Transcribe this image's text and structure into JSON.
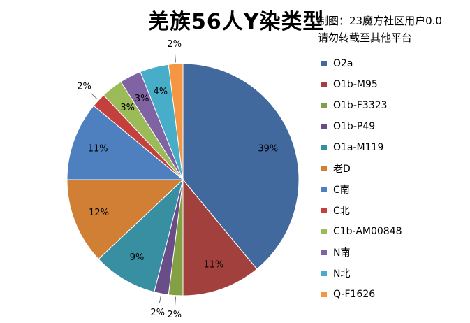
{
  "title": "羌族56人Y染类型",
  "credit": [
    "制图：23魔方社区用户0.0",
    "请勿转载至其他平台"
  ],
  "chart_data": {
    "type": "pie",
    "title": "羌族56人Y染类型",
    "legend_position": "right",
    "slices": [
      {
        "label": "O2a",
        "value": 39,
        "display": "39%",
        "color": "#41699E"
      },
      {
        "label": "O1b-M95",
        "value": 11,
        "display": "11%",
        "color": "#A2403D"
      },
      {
        "label": "O1b-F3323",
        "value": 2,
        "display": "2%",
        "color": "#84A045"
      },
      {
        "label": "O1b-P49",
        "value": 2,
        "display": "2%",
        "color": "#684D88"
      },
      {
        "label": "O1a-M119",
        "value": 9,
        "display": "9%",
        "color": "#388FA2"
      },
      {
        "label": "老D",
        "value": 12,
        "display": "12%",
        "color": "#D17F35"
      },
      {
        "label": "C南",
        "value": 11,
        "display": "11%",
        "color": "#4E80BF"
      },
      {
        "label": "C北",
        "value": 2,
        "display": "2%",
        "color": "#C4403C"
      },
      {
        "label": "C1b-AM00848",
        "value": 3,
        "display": "3%",
        "color": "#9BBB59"
      },
      {
        "label": "N南",
        "value": 3,
        "display": "3%",
        "color": "#8063A2"
      },
      {
        "label": "N北",
        "value": 4,
        "display": "4%",
        "color": "#48ADC8"
      },
      {
        "label": "Q-F1626",
        "value": 2,
        "display": "2%",
        "color": "#F59643"
      }
    ]
  }
}
